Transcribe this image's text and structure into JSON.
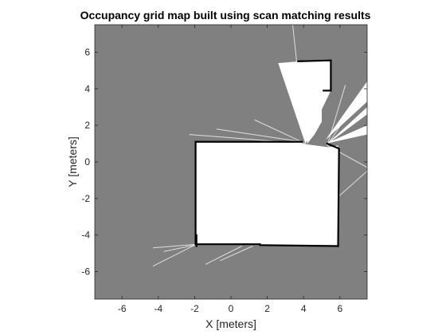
{
  "chart_data": {
    "type": "heatmap",
    "title": "Occupancy grid map built using scan matching results",
    "xlabel": "X [meters]",
    "ylabel": "Y [meters]",
    "xlim": [
      -7.5,
      7.5
    ],
    "ylim": [
      -7.5,
      7.5
    ],
    "xticks": [
      -6,
      -4,
      -2,
      0,
      2,
      4,
      6
    ],
    "yticks": [
      -6,
      -4,
      -2,
      0,
      2,
      4,
      6
    ],
    "xtick_labels": [
      "-6",
      "-4",
      "-2",
      "0",
      "2",
      "4",
      "6"
    ],
    "ytick_labels": [
      "-6",
      "-4",
      "-2",
      "0",
      "2",
      "4",
      "6"
    ],
    "colormap": "gray",
    "colors": {
      "unknown": "#808080",
      "free": "#ffffff",
      "occupied": "#000000"
    },
    "grid": false,
    "free_regions": [
      {
        "name": "main-room",
        "polygon": [
          [
            -1.9,
            1.1
          ],
          [
            3.9,
            1.1
          ],
          [
            3.9,
            1.0
          ],
          [
            5.4,
            0.8
          ],
          [
            5.9,
            0.9
          ],
          [
            5.9,
            -4.6
          ],
          [
            -1.9,
            -4.5
          ]
        ]
      },
      {
        "name": "upper-room",
        "polygon": [
          [
            4.5,
            5.4
          ],
          [
            5.5,
            5.5
          ],
          [
            5.5,
            3.9
          ],
          [
            4.1,
            1.0
          ],
          [
            3.3,
            5.0
          ],
          [
            3.7,
            5.5
          ]
        ]
      },
      {
        "name": "upper-room-box",
        "polygon": [
          [
            3.7,
            5.5
          ],
          [
            5.5,
            5.5
          ],
          [
            5.5,
            3.9
          ],
          [
            5.0,
            3.9
          ],
          [
            5.0,
            2.2
          ],
          [
            4.6,
            1.5
          ],
          [
            4.2,
            1.0
          ]
        ]
      },
      {
        "name": "fan-upper-left",
        "polygon": [
          [
            4.1,
            1.0
          ],
          [
            2.6,
            5.4
          ],
          [
            3.8,
            5.5
          ]
        ]
      },
      {
        "name": "fan-right-1",
        "polygon": [
          [
            5.2,
            1.2
          ],
          [
            7.5,
            4.4
          ],
          [
            7.5,
            3.3
          ]
        ]
      },
      {
        "name": "fan-right-2",
        "polygon": [
          [
            5.2,
            1.0
          ],
          [
            7.5,
            2.0
          ],
          [
            7.5,
            1.5
          ]
        ]
      },
      {
        "name": "fan-right-3",
        "polygon": [
          [
            5.2,
            0.9
          ],
          [
            7.5,
            3.0
          ],
          [
            7.5,
            2.6
          ]
        ]
      }
    ],
    "free_rays": [
      [
        [
          4.1,
          1.0
        ],
        [
          3.4,
          7.5
        ]
      ],
      [
        [
          4.1,
          1.0
        ],
        [
          -2.3,
          1.5
        ]
      ],
      [
        [
          3.9,
          1.1
        ],
        [
          -0.8,
          1.8
        ]
      ],
      [
        [
          3.9,
          1.1
        ],
        [
          1.3,
          2.3
        ]
      ],
      [
        [
          5.3,
          0.9
        ],
        [
          7.5,
          -0.3
        ]
      ],
      [
        [
          5.3,
          0.9
        ],
        [
          7.5,
          4.2
        ]
      ],
      [
        [
          5.3,
          0.9
        ],
        [
          6.3,
          4.2
        ]
      ],
      [
        [
          5.8,
          -2.0
        ],
        [
          7.5,
          -0.5
        ]
      ],
      [
        [
          -1.9,
          -4.5
        ],
        [
          -4.3,
          -4.7
        ]
      ],
      [
        [
          -1.9,
          -4.5
        ],
        [
          -4.3,
          -5.7
        ]
      ],
      [
        [
          0.6,
          -4.6
        ],
        [
          -1.4,
          -5.6
        ]
      ],
      [
        [
          1.2,
          -4.6
        ],
        [
          -0.6,
          -5.4
        ]
      ],
      [
        [
          -1.8,
          -4.5
        ],
        [
          -3.7,
          -4.9
        ]
      ]
    ],
    "occupied_walls": [
      [
        [
          -1.95,
          1.1
        ],
        [
          3.9,
          1.1
        ]
      ],
      [
        [
          -1.95,
          1.1
        ],
        [
          -1.95,
          -4.5
        ]
      ],
      [
        [
          -1.95,
          -4.5
        ],
        [
          1.6,
          -4.5
        ]
      ],
      [
        [
          1.6,
          -4.55
        ],
        [
          5.9,
          -4.6
        ]
      ],
      [
        [
          5.9,
          -4.6
        ],
        [
          5.95,
          0.7
        ]
      ],
      [
        [
          5.3,
          1.0
        ],
        [
          5.9,
          0.75
        ]
      ],
      [
        [
          3.7,
          5.5
        ],
        [
          5.5,
          5.55
        ]
      ],
      [
        [
          5.5,
          5.55
        ],
        [
          5.5,
          3.9
        ]
      ],
      [
        [
          5.5,
          3.9
        ],
        [
          5.1,
          3.9
        ]
      ],
      [
        [
          -1.9,
          -4.0
        ],
        [
          -1.9,
          -4.6
        ]
      ]
    ]
  }
}
